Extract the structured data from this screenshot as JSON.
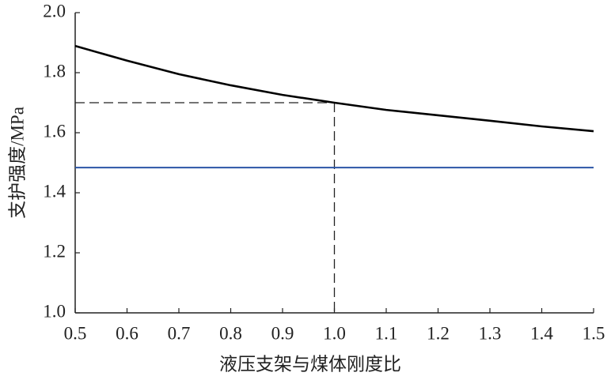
{
  "chart_data": {
    "type": "line",
    "xlabel": "液压支架与煤体刚度比",
    "ylabel": "支护强度/MPa",
    "x": [
      0.5,
      0.6,
      0.7,
      0.8,
      0.9,
      1.0,
      1.1,
      1.2,
      1.3,
      1.4,
      1.5
    ],
    "series": [
      {
        "color": "#000000",
        "values": [
          1.889,
          1.84,
          1.795,
          1.758,
          1.726,
          1.7,
          1.676,
          1.658,
          1.64,
          1.621,
          1.605
        ]
      },
      {
        "color": "#2b55a6",
        "values": [
          1.484,
          1.484,
          1.484,
          1.484,
          1.484,
          1.484,
          1.484,
          1.484,
          1.484,
          1.484,
          1.484
        ]
      }
    ],
    "reference": {
      "x": 1.0,
      "y": 1.7
    },
    "xlim": [
      0.5,
      1.5
    ],
    "ylim": [
      1.0,
      2.0
    ],
    "xticks": [
      0.5,
      0.6,
      0.7,
      0.8,
      0.9,
      {
        "value": 1,
        "label": "1.0"
      },
      1.1,
      1.2,
      1.3,
      1.4,
      1.5
    ],
    "yticks": [
      {
        "value": 1,
        "label": "1.0"
      },
      1.2,
      1.4,
      1.6,
      1.8,
      {
        "value": 2,
        "label": "2.0"
      }
    ]
  }
}
